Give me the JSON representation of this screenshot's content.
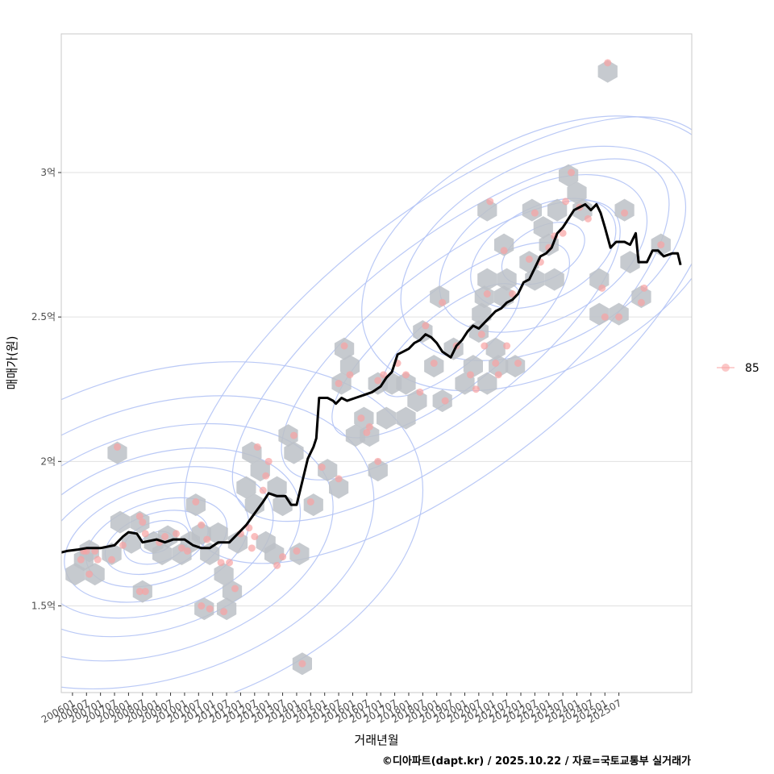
{
  "chart_data": {
    "type": "scatter",
    "xlabel": "거래년월",
    "ylabel": "매매가(원)",
    "caption": "©디아파트(dapt.kr) / 2025.10.22 / 자료=국토교통부 실거래가",
    "legend": {
      "position": "right",
      "entries": [
        {
          "label": "85",
          "color": "#f8a3a3"
        }
      ]
    },
    "grid": true,
    "xlim": [
      2005.6,
      2028.1
    ],
    "ylim": [
      1.2,
      3.48
    ],
    "y_ticks": [
      {
        "value": 1.5,
        "label": "1.5억"
      },
      {
        "value": 2.0,
        "label": "2억"
      },
      {
        "value": 2.5,
        "label": "2.5억"
      },
      {
        "value": 3.0,
        "label": "3억"
      }
    ],
    "x_ticks": [
      {
        "value": 2006.0,
        "label": "200601"
      },
      {
        "value": 2006.5,
        "label": "200607"
      },
      {
        "value": 2007.0,
        "label": "200701"
      },
      {
        "value": 2007.5,
        "label": "200707"
      },
      {
        "value": 2008.0,
        "label": "200801"
      },
      {
        "value": 2008.5,
        "label": "200807"
      },
      {
        "value": 2009.0,
        "label": "200901"
      },
      {
        "value": 2009.5,
        "label": "200907"
      },
      {
        "value": 2010.0,
        "label": "201001"
      },
      {
        "value": 2010.5,
        "label": "201007"
      },
      {
        "value": 2011.0,
        "label": "201101"
      },
      {
        "value": 2011.5,
        "label": "201107"
      },
      {
        "value": 2012.0,
        "label": "201201"
      },
      {
        "value": 2012.5,
        "label": "201207"
      },
      {
        "value": 2013.0,
        "label": "201301"
      },
      {
        "value": 2013.5,
        "label": "201307"
      },
      {
        "value": 2014.0,
        "label": "201401"
      },
      {
        "value": 2014.5,
        "label": "201407"
      },
      {
        "value": 2015.0,
        "label": "201501"
      },
      {
        "value": 2015.5,
        "label": "201507"
      },
      {
        "value": 2016.0,
        "label": "201601"
      },
      {
        "value": 2016.5,
        "label": "201607"
      },
      {
        "value": 2017.0,
        "label": "201701"
      },
      {
        "value": 2017.5,
        "label": "201707"
      },
      {
        "value": 2018.0,
        "label": "201801"
      },
      {
        "value": 2018.5,
        "label": "201807"
      },
      {
        "value": 2019.0,
        "label": "201901"
      },
      {
        "value": 2019.5,
        "label": "201907"
      },
      {
        "value": 2020.0,
        "label": "202001"
      },
      {
        "value": 2020.5,
        "label": "202007"
      },
      {
        "value": 2021.0,
        "label": "202101"
      },
      {
        "value": 2021.5,
        "label": "202107"
      },
      {
        "value": 2022.0,
        "label": "202201"
      },
      {
        "value": 2022.5,
        "label": "202207"
      },
      {
        "value": 2023.0,
        "label": "202301"
      },
      {
        "value": 2023.5,
        "label": "202307"
      },
      {
        "value": 2024.0,
        "label": "202401"
      },
      {
        "value": 2024.5,
        "label": "202407"
      },
      {
        "value": 2025.0,
        "label": "202501"
      },
      {
        "value": 2025.5,
        "label": "202507"
      }
    ],
    "points": [
      [
        2006.3,
        1.66
      ],
      [
        2006.4,
        1.69
      ],
      [
        2006.5,
        1.69
      ],
      [
        2006.6,
        1.61
      ],
      [
        2006.8,
        1.69
      ],
      [
        2006.9,
        1.66
      ],
      [
        2007.6,
        2.05
      ],
      [
        2007.4,
        1.66
      ],
      [
        2007.8,
        1.71
      ],
      [
        2008.4,
        1.81
      ],
      [
        2008.5,
        1.79
      ],
      [
        2008.6,
        1.75
      ],
      [
        2008.4,
        1.55
      ],
      [
        2008.6,
        1.55
      ],
      [
        2009.1,
        1.72
      ],
      [
        2009.3,
        1.74
      ],
      [
        2009.7,
        1.75
      ],
      [
        2009.9,
        1.7
      ],
      [
        2010.1,
        1.69
      ],
      [
        2010.4,
        1.86
      ],
      [
        2010.6,
        1.78
      ],
      [
        2010.8,
        1.73
      ],
      [
        2010.6,
        1.5
      ],
      [
        2010.9,
        1.49
      ],
      [
        2011.3,
        1.65
      ],
      [
        2011.6,
        1.65
      ],
      [
        2011.8,
        1.56
      ],
      [
        2011.4,
        1.48
      ],
      [
        2012.0,
        1.75
      ],
      [
        2012.3,
        1.77
      ],
      [
        2012.4,
        1.7
      ],
      [
        2012.5,
        1.74
      ],
      [
        2012.6,
        2.05
      ],
      [
        2012.8,
        1.9
      ],
      [
        2012.9,
        1.95
      ],
      [
        2013.0,
        2.0
      ],
      [
        2013.3,
        1.64
      ],
      [
        2013.5,
        1.67
      ],
      [
        2013.9,
        2.09
      ],
      [
        2014.0,
        1.69
      ],
      [
        2014.2,
        1.3
      ],
      [
        2014.5,
        1.86
      ],
      [
        2014.9,
        1.98
      ],
      [
        2015.5,
        1.94
      ],
      [
        2015.5,
        2.27
      ],
      [
        2015.7,
        2.4
      ],
      [
        2015.9,
        2.3
      ],
      [
        2016.3,
        2.15
      ],
      [
        2016.5,
        2.1
      ],
      [
        2016.6,
        2.12
      ],
      [
        2016.9,
        2.0
      ],
      [
        2016.9,
        2.28
      ],
      [
        2017.1,
        2.3
      ],
      [
        2017.6,
        2.34
      ],
      [
        2017.9,
        2.3
      ],
      [
        2018.4,
        2.24
      ],
      [
        2018.6,
        2.47
      ],
      [
        2018.9,
        2.34
      ],
      [
        2019.2,
        2.55
      ],
      [
        2019.3,
        2.21
      ],
      [
        2019.7,
        2.4
      ],
      [
        2020.2,
        2.3
      ],
      [
        2020.4,
        2.25
      ],
      [
        2020.6,
        2.44
      ],
      [
        2020.7,
        2.4
      ],
      [
        2020.8,
        2.58
      ],
      [
        2020.9,
        2.9
      ],
      [
        2021.1,
        2.34
      ],
      [
        2021.2,
        2.3
      ],
      [
        2021.4,
        2.73
      ],
      [
        2021.5,
        2.4
      ],
      [
        2021.7,
        2.58
      ],
      [
        2021.9,
        2.34
      ],
      [
        2022.3,
        2.7
      ],
      [
        2022.5,
        2.86
      ],
      [
        2022.7,
        2.69
      ],
      [
        2023.0,
        2.74
      ],
      [
        2023.2,
        2.78
      ],
      [
        2023.5,
        2.79
      ],
      [
        2023.6,
        2.9
      ],
      [
        2023.8,
        3.0
      ],
      [
        2024.1,
        2.88
      ],
      [
        2024.4,
        2.84
      ],
      [
        2024.9,
        2.6
      ],
      [
        2025.0,
        2.5
      ],
      [
        2025.1,
        3.38
      ],
      [
        2025.5,
        2.5
      ],
      [
        2025.7,
        2.86
      ],
      [
        2026.3,
        2.55
      ],
      [
        2026.4,
        2.6
      ],
      [
        2027.0,
        2.75
      ]
    ],
    "hexbins": [
      [
        2006.1,
        1.61
      ],
      [
        2006.4,
        1.66
      ],
      [
        2006.6,
        1.69
      ],
      [
        2006.8,
        1.61
      ],
      [
        2007.4,
        1.68
      ],
      [
        2007.6,
        2.03
      ],
      [
        2007.7,
        1.79
      ],
      [
        2008.1,
        1.72
      ],
      [
        2008.4,
        1.79
      ],
      [
        2008.5,
        1.55
      ],
      [
        2008.9,
        1.72
      ],
      [
        2009.2,
        1.68
      ],
      [
        2009.4,
        1.74
      ],
      [
        2009.9,
        1.68
      ],
      [
        2010.2,
        1.72
      ],
      [
        2010.4,
        1.85
      ],
      [
        2010.6,
        1.75
      ],
      [
        2010.7,
        1.49
      ],
      [
        2010.9,
        1.68
      ],
      [
        2011.2,
        1.75
      ],
      [
        2011.4,
        1.61
      ],
      [
        2011.5,
        1.49
      ],
      [
        2011.7,
        1.55
      ],
      [
        2011.9,
        1.72
      ],
      [
        2012.2,
        1.91
      ],
      [
        2012.4,
        2.03
      ],
      [
        2012.5,
        1.85
      ],
      [
        2012.7,
        1.97
      ],
      [
        2012.9,
        1.72
      ],
      [
        2013.2,
        1.68
      ],
      [
        2013.3,
        1.91
      ],
      [
        2013.5,
        1.85
      ],
      [
        2013.7,
        2.09
      ],
      [
        2013.9,
        2.03
      ],
      [
        2014.1,
        1.68
      ],
      [
        2014.2,
        1.3
      ],
      [
        2014.6,
        1.85
      ],
      [
        2015.1,
        1.97
      ],
      [
        2015.5,
        1.91
      ],
      [
        2015.6,
        2.27
      ],
      [
        2015.7,
        2.39
      ],
      [
        2015.9,
        2.33
      ],
      [
        2016.1,
        2.09
      ],
      [
        2016.4,
        2.15
      ],
      [
        2016.6,
        2.09
      ],
      [
        2016.9,
        1.97
      ],
      [
        2016.9,
        2.27
      ],
      [
        2017.2,
        2.15
      ],
      [
        2017.4,
        2.27
      ],
      [
        2017.9,
        2.15
      ],
      [
        2017.9,
        2.27
      ],
      [
        2018.3,
        2.21
      ],
      [
        2018.5,
        2.45
      ],
      [
        2018.9,
        2.33
      ],
      [
        2019.1,
        2.57
      ],
      [
        2019.2,
        2.21
      ],
      [
        2019.6,
        2.39
      ],
      [
        2020.0,
        2.27
      ],
      [
        2020.3,
        2.33
      ],
      [
        2020.5,
        2.45
      ],
      [
        2020.6,
        2.51
      ],
      [
        2020.7,
        2.57
      ],
      [
        2020.8,
        2.87
      ],
      [
        2020.8,
        2.27
      ],
      [
        2020.8,
        2.63
      ],
      [
        2021.1,
        2.39
      ],
      [
        2021.2,
        2.33
      ],
      [
        2021.4,
        2.75
      ],
      [
        2021.4,
        2.57
      ],
      [
        2021.5,
        2.63
      ],
      [
        2021.8,
        2.33
      ],
      [
        2022.3,
        2.69
      ],
      [
        2022.4,
        2.87
      ],
      [
        2022.5,
        2.63
      ],
      [
        2022.8,
        2.81
      ],
      [
        2023.0,
        2.75
      ],
      [
        2023.2,
        2.63
      ],
      [
        2023.3,
        2.87
      ],
      [
        2023.7,
        2.99
      ],
      [
        2024.0,
        2.93
      ],
      [
        2024.2,
        2.87
      ],
      [
        2024.8,
        2.51
      ],
      [
        2024.8,
        2.63
      ],
      [
        2025.1,
        3.35
      ],
      [
        2025.5,
        2.51
      ],
      [
        2025.7,
        2.87
      ],
      [
        2025.9,
        2.69
      ],
      [
        2026.3,
        2.57
      ],
      [
        2027.0,
        2.75
      ]
    ],
    "trend_line": [
      [
        2005.6,
        1.685
      ],
      [
        2005.8,
        1.69
      ],
      [
        2006.2,
        1.695
      ],
      [
        2006.5,
        1.7
      ],
      [
        2007.0,
        1.7
      ],
      [
        2007.5,
        1.71
      ],
      [
        2007.8,
        1.74
      ],
      [
        2008.0,
        1.755
      ],
      [
        2008.3,
        1.75
      ],
      [
        2008.5,
        1.72
      ],
      [
        2009.0,
        1.73
      ],
      [
        2009.3,
        1.72
      ],
      [
        2009.6,
        1.73
      ],
      [
        2010.0,
        1.73
      ],
      [
        2010.3,
        1.71
      ],
      [
        2010.6,
        1.7
      ],
      [
        2010.9,
        1.7
      ],
      [
        2011.2,
        1.72
      ],
      [
        2011.6,
        1.72
      ],
      [
        2011.9,
        1.75
      ],
      [
        2012.2,
        1.78
      ],
      [
        2012.5,
        1.82
      ],
      [
        2012.8,
        1.86
      ],
      [
        2013.0,
        1.89
      ],
      [
        2013.3,
        1.88
      ],
      [
        2013.6,
        1.88
      ],
      [
        2013.8,
        1.85
      ],
      [
        2014.0,
        1.85
      ],
      [
        2014.2,
        1.93
      ],
      [
        2014.4,
        2.01
      ],
      [
        2014.6,
        2.05
      ],
      [
        2014.7,
        2.08
      ],
      [
        2014.8,
        2.22
      ],
      [
        2015.1,
        2.22
      ],
      [
        2015.3,
        2.21
      ],
      [
        2015.4,
        2.2
      ],
      [
        2015.6,
        2.22
      ],
      [
        2015.8,
        2.21
      ],
      [
        2016.1,
        2.22
      ],
      [
        2016.4,
        2.23
      ],
      [
        2016.7,
        2.24
      ],
      [
        2017.0,
        2.26
      ],
      [
        2017.2,
        2.29
      ],
      [
        2017.4,
        2.31
      ],
      [
        2017.6,
        2.37
      ],
      [
        2017.8,
        2.38
      ],
      [
        2018.0,
        2.39
      ],
      [
        2018.2,
        2.41
      ],
      [
        2018.4,
        2.42
      ],
      [
        2018.6,
        2.44
      ],
      [
        2018.8,
        2.43
      ],
      [
        2019.0,
        2.41
      ],
      [
        2019.2,
        2.38
      ],
      [
        2019.5,
        2.36
      ],
      [
        2019.7,
        2.4
      ],
      [
        2019.9,
        2.42
      ],
      [
        2020.1,
        2.45
      ],
      [
        2020.3,
        2.47
      ],
      [
        2020.5,
        2.46
      ],
      [
        2020.7,
        2.48
      ],
      [
        2020.9,
        2.5
      ],
      [
        2021.1,
        2.52
      ],
      [
        2021.3,
        2.53
      ],
      [
        2021.5,
        2.55
      ],
      [
        2021.7,
        2.56
      ],
      [
        2021.9,
        2.58
      ],
      [
        2022.1,
        2.62
      ],
      [
        2022.3,
        2.63
      ],
      [
        2022.5,
        2.67
      ],
      [
        2022.7,
        2.71
      ],
      [
        2022.9,
        2.72
      ],
      [
        2023.1,
        2.74
      ],
      [
        2023.3,
        2.79
      ],
      [
        2023.5,
        2.81
      ],
      [
        2023.7,
        2.84
      ],
      [
        2023.9,
        2.87
      ],
      [
        2024.1,
        2.88
      ],
      [
        2024.3,
        2.89
      ],
      [
        2024.5,
        2.87
      ],
      [
        2024.7,
        2.89
      ],
      [
        2024.85,
        2.86
      ],
      [
        2025.0,
        2.81
      ],
      [
        2025.2,
        2.74
      ],
      [
        2025.4,
        2.76
      ],
      [
        2025.7,
        2.76
      ],
      [
        2025.9,
        2.75
      ],
      [
        2026.1,
        2.79
      ],
      [
        2026.2,
        2.69
      ],
      [
        2026.5,
        2.69
      ],
      [
        2026.7,
        2.73
      ],
      [
        2026.9,
        2.73
      ],
      [
        2027.1,
        2.71
      ],
      [
        2027.4,
        2.72
      ],
      [
        2027.6,
        2.72
      ],
      [
        2027.7,
        2.68
      ]
    ],
    "density_contours": [
      {
        "cx": 2009.0,
        "cy": 1.72,
        "a": [
          0.6,
          1.2,
          1.9,
          2.6,
          3.4,
          4.3,
          5.3,
          6.5,
          8.0,
          9.8
        ],
        "b": [
          0.035,
          0.07,
          0.1,
          0.14,
          0.19,
          0.24,
          0.3,
          0.38,
          0.47,
          0.58
        ],
        "angle": 18
      },
      {
        "cx": 2019.5,
        "cy": 2.42,
        "a": [
          3.0,
          5.2,
          7.4,
          9.5,
          11.5
        ],
        "b": [
          0.1,
          0.17,
          0.25,
          0.34,
          0.45
        ],
        "angle": 38
      },
      {
        "cx": 2022.8,
        "cy": 2.72,
        "a": [
          1.6,
          2.8,
          4.0,
          5.5,
          7.0
        ],
        "b": [
          0.09,
          0.16,
          0.23,
          0.31,
          0.4
        ],
        "angle": 28
      }
    ],
    "colors": {
      "point": "#f8a3a3",
      "hexbin": "#bcc1c7",
      "contour": "#b3c3f5",
      "trend": "#000000",
      "grid": "#e0e0e0",
      "panel_border": "#c8c8c8"
    }
  }
}
